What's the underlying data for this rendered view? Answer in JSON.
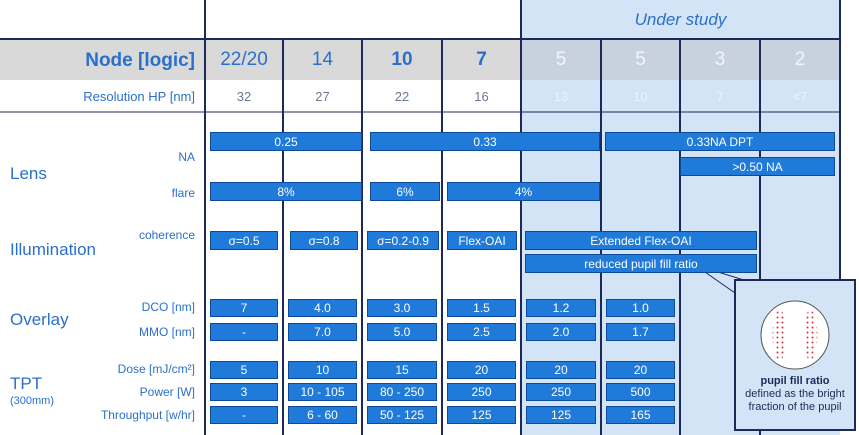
{
  "header": {
    "under_study": "Under study"
  },
  "node_row": {
    "label": "Node [logic]",
    "values": [
      "22/20",
      "14",
      "10",
      "7",
      "5",
      "5",
      "3",
      "2"
    ]
  },
  "resolution_row": {
    "label": "Resolution HP [nm]",
    "values": [
      "32",
      "27",
      "22",
      "16",
      "13",
      "10",
      "7",
      "<7"
    ]
  },
  "lens": {
    "label": "Lens",
    "na_label": "NA",
    "flare_label": "flare",
    "na_bars": [
      "0.25",
      "0.33",
      "0.33NA DPT",
      ">0.50 NA"
    ],
    "flare_bars": [
      "8%",
      "6%",
      "4%"
    ]
  },
  "illumination": {
    "label": "Illumination",
    "coherence_label": "coherence",
    "bars": [
      "σ=0.5",
      "σ=0.8",
      "σ=0.2-0.9",
      "Flex-OAI",
      "Extended Flex-OAI",
      "reduced pupil fill ratio"
    ]
  },
  "overlay": {
    "label": "Overlay",
    "dco_label": "DCO [nm]",
    "mmo_label": "MMO [nm]",
    "dco": [
      "7",
      "4.0",
      "3.0",
      "1.5",
      "1.2",
      "1.0"
    ],
    "mmo": [
      "-",
      "7.0",
      "5.0",
      "2.5",
      "2.0",
      "1.7"
    ]
  },
  "tpt": {
    "label": "TPT",
    "sublabel": "(300mm)",
    "dose_label": "Dose [mJ/cm²]",
    "power_label": "Power [W]",
    "throughput_label": "Throughput [w/hr]",
    "dose": [
      "5",
      "10",
      "15",
      "20",
      "20",
      "20"
    ],
    "power": [
      "3",
      "10 - 105",
      "80 - 250",
      "250",
      "250",
      "500"
    ],
    "throughput": [
      "-",
      "6 - 60",
      "50 - 125",
      "125",
      "125",
      "165"
    ]
  },
  "callout": {
    "title": "pupil fill ratio",
    "text": "defined as the bright fraction of the pupil"
  }
}
